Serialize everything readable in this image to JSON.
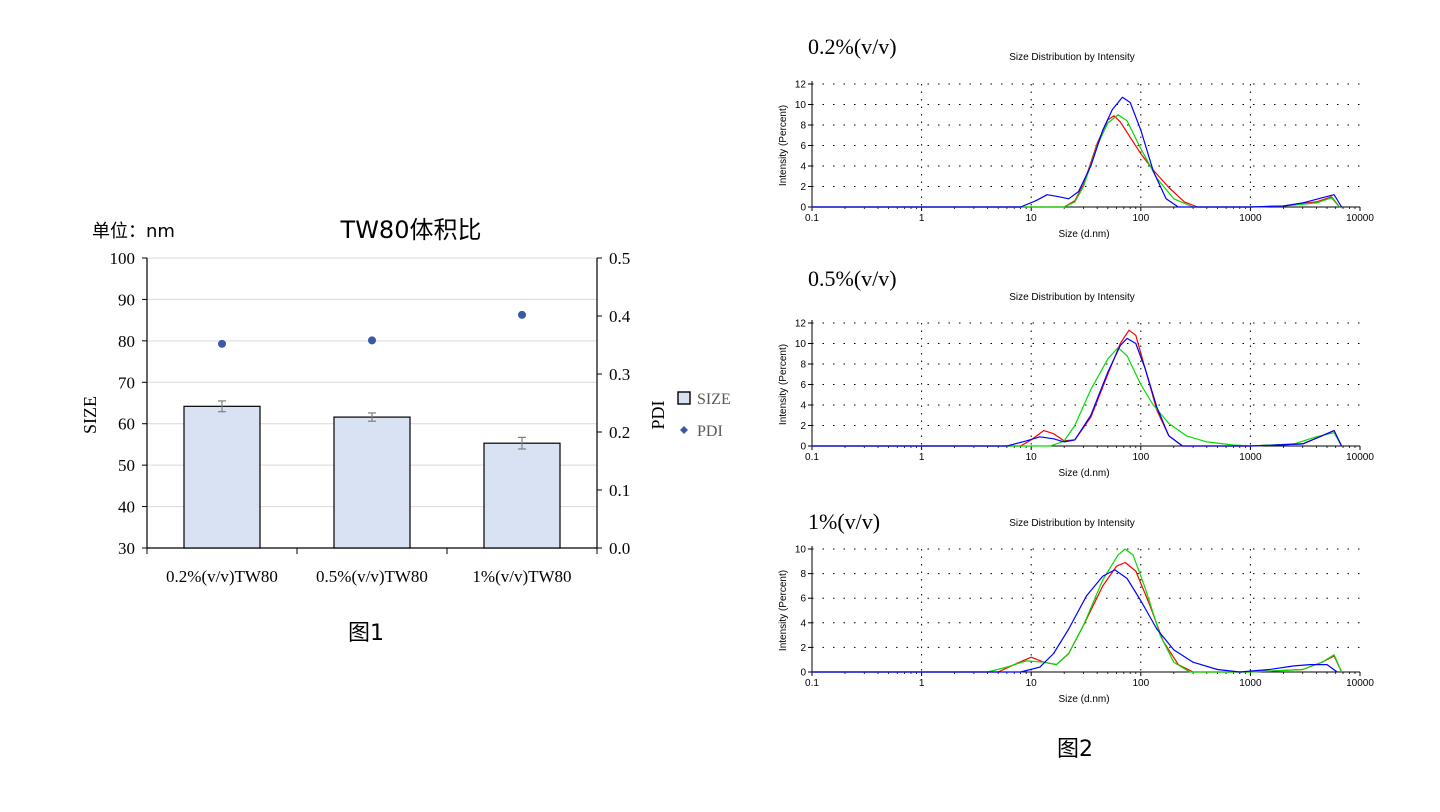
{
  "figure1": {
    "caption": "图1",
    "unit_label": "单位：nm",
    "colors": {
      "bar_fill": "#d9e2f3",
      "bar_stroke": "#000000",
      "pdi_marker": "#3a5aa6",
      "grid": "#d9d9d9",
      "error": "#7f7f7f"
    },
    "chart_data": {
      "type": "bar",
      "title": "TW80体积比",
      "categories": [
        "0.2%(v/v)TW80",
        "0.5%(v/v)TW80",
        "1%(v/v)TW80"
      ],
      "series": [
        {
          "name": "SIZE",
          "type": "bar",
          "axis": "left",
          "values": [
            64.2,
            61.6,
            55.3
          ],
          "errors": [
            1.3,
            1.0,
            1.4
          ]
        },
        {
          "name": "PDI",
          "type": "scatter",
          "axis": "right",
          "values": [
            0.352,
            0.358,
            0.402
          ]
        }
      ],
      "ylabel": "SIZE",
      "ylim": [
        30,
        100
      ],
      "yticks": [
        "30",
        "40",
        "50",
        "60",
        "70",
        "80",
        "90",
        "100"
      ],
      "y2label": "PDI",
      "y2lim": [
        0,
        0.5
      ],
      "y2ticks": [
        "0.0",
        "0.1",
        "0.2",
        "0.3",
        "0.4",
        "0.5"
      ],
      "grid": true,
      "legend": "right"
    }
  },
  "figure2": {
    "caption": "图2",
    "colors": {
      "red": "#ff0000",
      "green": "#00dd00",
      "blue": "#0000ff",
      "axis": "#000000",
      "grid": "#000000"
    },
    "panels": [
      {
        "label": "0.2%(v/v)",
        "chart_data": {
          "type": "line",
          "title": "Size Distribution by Intensity",
          "xlabel": "Size (d.nm)",
          "ylabel": "Intensity (Percent)",
          "xscale": "log",
          "xlim": [
            0.1,
            10000
          ],
          "xticks": [
            "0.1",
            "1",
            "10",
            "100",
            "1000",
            "10000"
          ],
          "ylim": [
            0,
            12
          ],
          "yticks": [
            "0",
            "2",
            "4",
            "6",
            "8",
            "10",
            "12"
          ],
          "series": [
            {
              "color": "red",
              "points": [
                [
                  0.1,
                  0
                ],
                [
                  20,
                  0
                ],
                [
                  25,
                  0.6
                ],
                [
                  30,
                  2.2
                ],
                [
                  40,
                  6.2
                ],
                [
                  50,
                  8.5
                ],
                [
                  57,
                  8.9
                ],
                [
                  65,
                  8.3
                ],
                [
                  80,
                  6.8
                ],
                [
                  100,
                  5.2
                ],
                [
                  130,
                  3.6
                ],
                [
                  180,
                  1.9
                ],
                [
                  250,
                  0.5
                ],
                [
                  330,
                  0
                ],
                [
                  1000,
                  0
                ],
                [
                  2000,
                  0.1
                ],
                [
                  4000,
                  0.5
                ],
                [
                  5500,
                  1.0
                ],
                [
                  6500,
                  0
                ]
              ]
            },
            {
              "color": "green",
              "points": [
                [
                  0.1,
                  0
                ],
                [
                  20,
                  0
                ],
                [
                  25,
                  0.5
                ],
                [
                  30,
                  2
                ],
                [
                  40,
                  6
                ],
                [
                  50,
                  8.2
                ],
                [
                  62,
                  9
                ],
                [
                  75,
                  8.4
                ],
                [
                  100,
                  5.7
                ],
                [
                  140,
                  2.8
                ],
                [
                  200,
                  0.8
                ],
                [
                  300,
                  0
                ],
                [
                  1000,
                  0
                ],
                [
                  2000,
                  0.1
                ],
                [
                  4000,
                  0.4
                ],
                [
                  5500,
                  0.9
                ],
                [
                  6500,
                  0
                ]
              ]
            },
            {
              "color": "blue",
              "points": [
                [
                  0.1,
                  0
                ],
                [
                  8,
                  0
                ],
                [
                  11,
                  0.6
                ],
                [
                  14,
                  1.2
                ],
                [
                  18,
                  1
                ],
                [
                  22,
                  0.8
                ],
                [
                  27,
                  1.5
                ],
                [
                  35,
                  4
                ],
                [
                  45,
                  7.5
                ],
                [
                  55,
                  9.5
                ],
                [
                  68,
                  10.7
                ],
                [
                  80,
                  10.2
                ],
                [
                  100,
                  7.5
                ],
                [
                  130,
                  3.5
                ],
                [
                  170,
                  0.8
                ],
                [
                  220,
                  0
                ],
                [
                  1000,
                  0
                ],
                [
                  2000,
                  0.1
                ],
                [
                  3000,
                  0.4
                ],
                [
                  4500,
                  0.9
                ],
                [
                  5800,
                  1.2
                ],
                [
                  6800,
                  0
                ]
              ]
            }
          ]
        }
      },
      {
        "label": "0.5%(v/v)",
        "chart_data": {
          "type": "line",
          "title": "Size Distribution by Intensity",
          "xlabel": "Size (d.nm)",
          "ylabel": "Intensity (Percent)",
          "xscale": "log",
          "xlim": [
            0.1,
            10000
          ],
          "xticks": [
            "0.1",
            "1",
            "10",
            "100",
            "1000",
            "10000"
          ],
          "ylim": [
            0,
            12
          ],
          "yticks": [
            "0",
            "2",
            "4",
            "6",
            "8",
            "10",
            "12"
          ],
          "series": [
            {
              "color": "red",
              "points": [
                [
                  0.1,
                  0
                ],
                [
                  8,
                  0
                ],
                [
                  10,
                  0.6
                ],
                [
                  13,
                  1.5
                ],
                [
                  16,
                  1.2
                ],
                [
                  20,
                  0.5
                ],
                [
                  25,
                  0.6
                ],
                [
                  35,
                  2.8
                ],
                [
                  50,
                  7
                ],
                [
                  65,
                  10
                ],
                [
                  78,
                  11.3
                ],
                [
                  90,
                  10.8
                ],
                [
                  110,
                  7.5
                ],
                [
                  140,
                  3.5
                ],
                [
                  180,
                  1
                ],
                [
                  240,
                  0
                ],
                [
                  1000,
                  0
                ],
                [
                  3000,
                  0.2
                ],
                [
                  4500,
                  1.0
                ],
                [
                  5800,
                  1.5
                ],
                [
                  6800,
                  0
                ]
              ]
            },
            {
              "color": "green",
              "points": [
                [
                  0.1,
                  0
                ],
                [
                  15,
                  0
                ],
                [
                  20,
                  0.5
                ],
                [
                  25,
                  2
                ],
                [
                  35,
                  5.5
                ],
                [
                  50,
                  8.5
                ],
                [
                  62,
                  9.6
                ],
                [
                  75,
                  8.8
                ],
                [
                  100,
                  6
                ],
                [
                  130,
                  4
                ],
                [
                  180,
                  2.2
                ],
                [
                  260,
                  1
                ],
                [
                  400,
                  0.4
                ],
                [
                  700,
                  0.1
                ],
                [
                  1000,
                  0
                ],
                [
                  2500,
                  0.2
                ],
                [
                  4000,
                  0.9
                ],
                [
                  5800,
                  1.3
                ],
                [
                  6800,
                  0
                ]
              ]
            },
            {
              "color": "blue",
              "points": [
                [
                  0.1,
                  0
                ],
                [
                  6,
                  0
                ],
                [
                  9,
                  0.5
                ],
                [
                  12,
                  0.9
                ],
                [
                  16,
                  0.7
                ],
                [
                  20,
                  0.4
                ],
                [
                  25,
                  0.6
                ],
                [
                  35,
                  3
                ],
                [
                  50,
                  7.2
                ],
                [
                  65,
                  9.8
                ],
                [
                  75,
                  10.5
                ],
                [
                  90,
                  10
                ],
                [
                  110,
                  7.5
                ],
                [
                  140,
                  3.8
                ],
                [
                  180,
                  1
                ],
                [
                  240,
                  0
                ],
                [
                  1000,
                  0
                ],
                [
                  3000,
                  0.2
                ],
                [
                  4500,
                  1.0
                ],
                [
                  5800,
                  1.5
                ],
                [
                  6800,
                  0
                ]
              ]
            }
          ]
        }
      },
      {
        "label": "1%(v/v)",
        "chart_data": {
          "type": "line",
          "title": "Size Distribution by Intensity",
          "xlabel": "Size (d.nm)",
          "ylabel": "Intensity (Percent)",
          "xscale": "log",
          "xlim": [
            0.1,
            10000
          ],
          "xticks": [
            "0.1",
            "1",
            "10",
            "100",
            "1000",
            "10000"
          ],
          "ylim": [
            0,
            10
          ],
          "yticks": [
            "0",
            "2",
            "4",
            "6",
            "8",
            "10"
          ],
          "series": [
            {
              "color": "red",
              "points": [
                [
                  0.1,
                  0
                ],
                [
                  5,
                  0
                ],
                [
                  7,
                  0.6
                ],
                [
                  10,
                  1.2
                ],
                [
                  13,
                  0.8
                ],
                [
                  17,
                  0.6
                ],
                [
                  22,
                  1.5
                ],
                [
                  30,
                  3.8
                ],
                [
                  45,
                  7
                ],
                [
                  60,
                  8.6
                ],
                [
                  72,
                  8.9
                ],
                [
                  90,
                  8.2
                ],
                [
                  120,
                  5.5
                ],
                [
                  160,
                  2.5
                ],
                [
                  220,
                  0.6
                ],
                [
                  300,
                  0
                ],
                [
                  1000,
                  0
                ],
                [
                  3000,
                  0.2
                ],
                [
                  4500,
                  0.8
                ],
                [
                  5800,
                  1.3
                ],
                [
                  6800,
                  0
                ]
              ]
            },
            {
              "color": "green",
              "points": [
                [
                  0.1,
                  0
                ],
                [
                  4,
                  0
                ],
                [
                  6,
                  0.4
                ],
                [
                  9,
                  0.9
                ],
                [
                  13,
                  0.8
                ],
                [
                  17,
                  0.6
                ],
                [
                  22,
                  1.5
                ],
                [
                  30,
                  3.8
                ],
                [
                  45,
                  7.5
                ],
                [
                  62,
                  9.5
                ],
                [
                  72,
                  10
                ],
                [
                  85,
                  9.5
                ],
                [
                  110,
                  6.8
                ],
                [
                  150,
                  3
                ],
                [
                  200,
                  0.8
                ],
                [
                  280,
                  0
                ],
                [
                  1000,
                  0
                ],
                [
                  3000,
                  0.2
                ],
                [
                  4500,
                  0.8
                ],
                [
                  5800,
                  1.4
                ],
                [
                  6800,
                  0
                ]
              ]
            },
            {
              "color": "blue",
              "points": [
                [
                  0.1,
                  0
                ],
                [
                  8,
                  0
                ],
                [
                  12,
                  0.4
                ],
                [
                  16,
                  1.5
                ],
                [
                  22,
                  3.5
                ],
                [
                  32,
                  6.2
                ],
                [
                  45,
                  7.8
                ],
                [
                  58,
                  8.3
                ],
                [
                  75,
                  7.6
                ],
                [
                  100,
                  5.8
                ],
                [
                  140,
                  3.5
                ],
                [
                  200,
                  1.8
                ],
                [
                  300,
                  0.8
                ],
                [
                  500,
                  0.2
                ],
                [
                  800,
                  0
                ],
                [
                  1500,
                  0.2
                ],
                [
                  2500,
                  0.5
                ],
                [
                  3500,
                  0.6
                ],
                [
                  5000,
                  0.6
                ],
                [
                  6200,
                  0
                ]
              ]
            }
          ]
        }
      }
    ]
  }
}
